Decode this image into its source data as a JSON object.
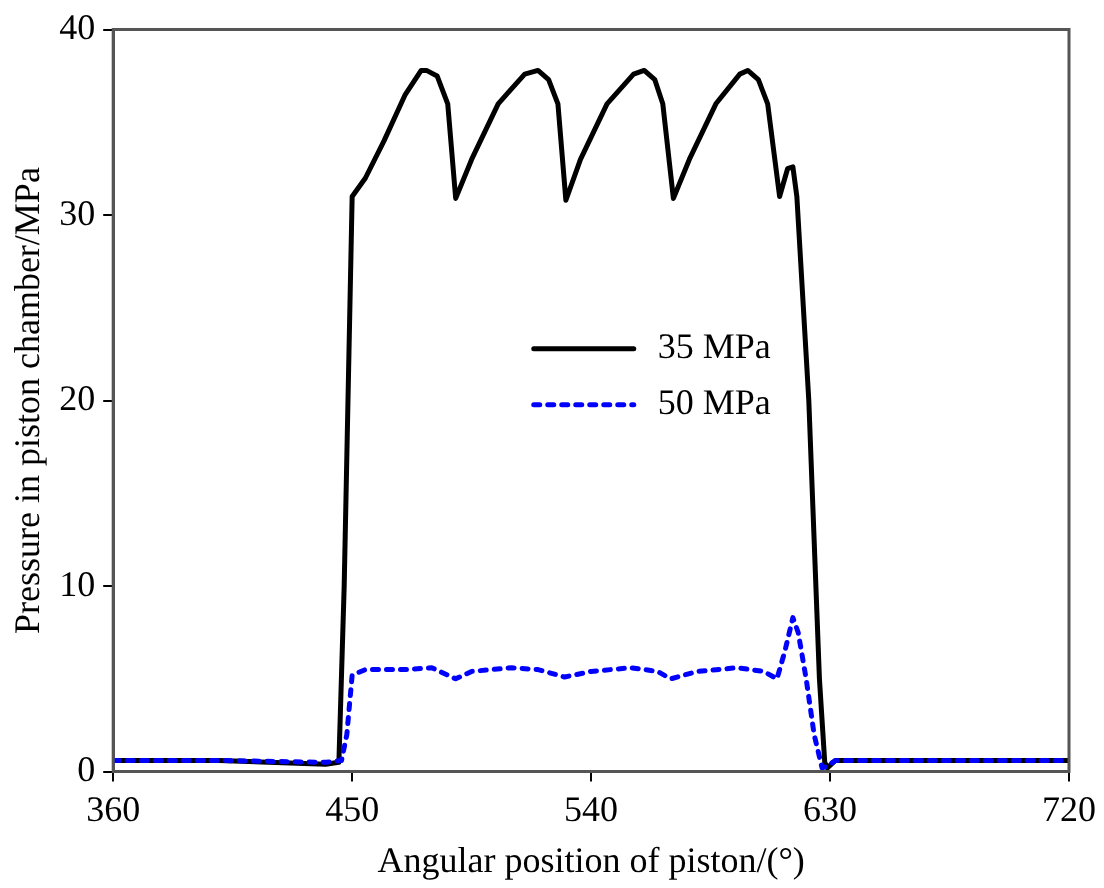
{
  "chart_data": {
    "type": "line",
    "xlabel": "Angular position of piston/(°)",
    "ylabel": "Pressure in piston chamber/MPa",
    "xlim": [
      360,
      720
    ],
    "xticks": [
      360,
      450,
      540,
      630,
      720
    ],
    "ylim": [
      0,
      40
    ],
    "yticks": [
      0,
      10,
      20,
      30,
      40
    ],
    "grid": false,
    "legend": "center",
    "marker": "none",
    "series": [
      {
        "name": "35 MPa",
        "color": "#000000",
        "line_style": "solid",
        "x": [
          360,
          400,
          440,
          445,
          447,
          450,
          455,
          462,
          470,
          476,
          478,
          482,
          486,
          489,
          495,
          505,
          515,
          520,
          524,
          527.5,
          530.5,
          536,
          546,
          556,
          560,
          564,
          567,
          571,
          577,
          587,
          596,
          599,
          603,
          606.5,
          611,
          614,
          616,
          617.5,
          622,
          626,
          628,
          629,
          632,
          720
        ],
        "values": [
          0.6,
          0.6,
          0.4,
          0.5,
          10,
          31,
          32,
          34,
          36.5,
          37.8,
          37.8,
          37.5,
          36,
          30.9,
          33,
          36,
          37.6,
          37.8,
          37.3,
          36,
          30.8,
          33,
          36,
          37.6,
          37.8,
          37.3,
          36,
          30.9,
          33,
          36,
          37.6,
          37.8,
          37.3,
          36,
          31,
          32.5,
          32.6,
          31,
          20,
          5,
          0.5,
          0.2,
          0.6,
          0.6
        ]
      },
      {
        "name": "50 MPa",
        "color": "#0000ff",
        "line_style": "dotted",
        "x": [
          360,
          400,
          440,
          446,
          448,
          450,
          455,
          470,
          480,
          489,
          495,
          510,
          520,
          530,
          540,
          555,
          565,
          570,
          580,
          595,
          605,
          610,
          613,
          616,
          618,
          621,
          624,
          627,
          629,
          632,
          720
        ],
        "values": [
          0.6,
          0.6,
          0.5,
          0.6,
          2,
          5.2,
          5.5,
          5.5,
          5.6,
          5,
          5.4,
          5.6,
          5.5,
          5.1,
          5.4,
          5.6,
          5.4,
          5,
          5.4,
          5.6,
          5.4,
          5,
          6.5,
          8.3,
          7.5,
          5,
          2,
          0.2,
          0.3,
          0.6,
          0.6
        ]
      }
    ]
  }
}
